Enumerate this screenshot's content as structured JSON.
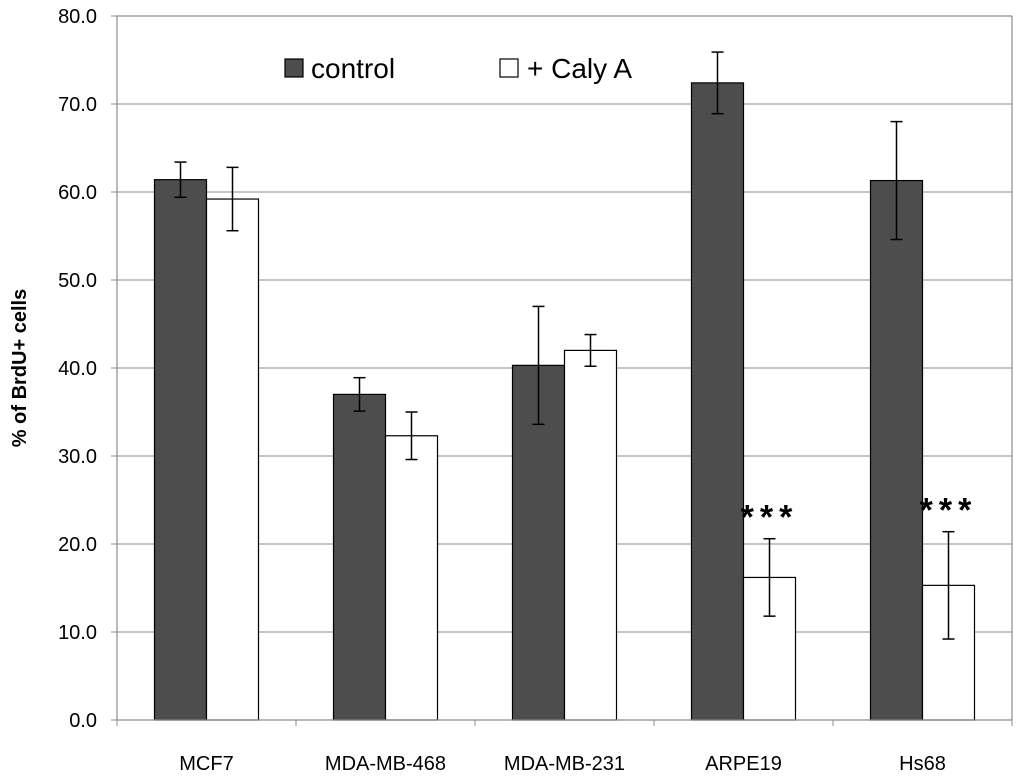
{
  "chart_data": {
    "type": "bar",
    "title": "",
    "xlabel": "",
    "ylabel": "% of BrdU+ cells",
    "ylim": [
      0,
      80
    ],
    "ytick_step": 10,
    "ytick_labels": [
      "0.0",
      "10.0",
      "20.0",
      "30.0",
      "40.0",
      "50.0",
      "60.0",
      "70.0",
      "80.0"
    ],
    "grid": true,
    "legend_position": "top",
    "categories": [
      "MCF7",
      "MDA-MB-468",
      "MDA-MB-231",
      "ARPE19",
      "Hs68"
    ],
    "series": [
      {
        "name": "control",
        "color": "#4d4d4d",
        "values": [
          61.4,
          37.0,
          40.3,
          72.4,
          61.3
        ],
        "errors": [
          2.0,
          1.9,
          6.7,
          3.5,
          6.7
        ]
      },
      {
        "name": "+ Caly A",
        "color": "#ffffff",
        "values": [
          59.2,
          32.3,
          42.0,
          16.2,
          15.3
        ],
        "errors": [
          3.6,
          2.7,
          1.8,
          4.4,
          6.1
        ]
      }
    ],
    "annotations": [
      {
        "category": "ARPE19",
        "series": "+ Caly A",
        "text": "***"
      },
      {
        "category": "Hs68",
        "series": "+ Caly A",
        "text": "***"
      }
    ]
  }
}
